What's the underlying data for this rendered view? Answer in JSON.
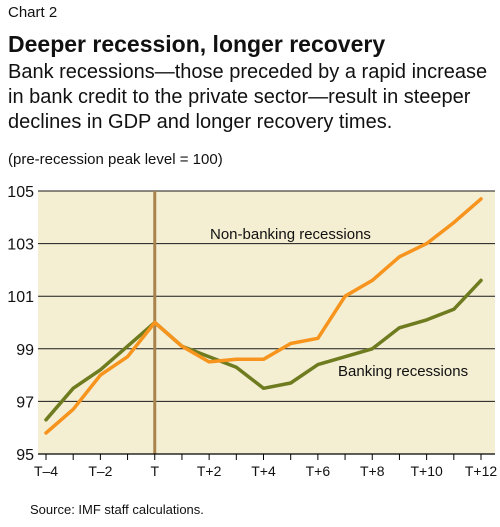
{
  "header": {
    "kicker": "Chart 2",
    "title": "Deeper recession, longer recovery",
    "subtitle": "Bank recessions—those preceded by a rapid increase in bank credit to the private sector—result in steeper declines in GDP and longer recovery times.",
    "unit_note": "(pre-recession peak level = 100)"
  },
  "footer": {
    "source": "Source: IMF staff calculations."
  },
  "chart_data": {
    "type": "line",
    "title": "Deeper recession, longer recovery",
    "x": [
      "T−4",
      "T−3",
      "T−2",
      "T−1",
      "T",
      "T+1",
      "T+2",
      "T+3",
      "T+4",
      "T+5",
      "T+6",
      "T+7",
      "T+8",
      "T+9",
      "T+10",
      "T+11",
      "T+12"
    ],
    "x_tick_labels": [
      "T–4",
      "T–2",
      "T",
      "T+2",
      "T+4",
      "T+6",
      "T+8",
      "T+10",
      "T+12"
    ],
    "ylim": [
      95,
      105
    ],
    "y_ticks": [
      "95",
      "97",
      "99",
      "101",
      "103",
      "105"
    ],
    "grid": "horizontal",
    "reference_line_at": "T",
    "series": [
      {
        "name": "Non-banking recessions",
        "color": "#f7941d",
        "values": [
          95.8,
          96.7,
          98.0,
          98.7,
          100.0,
          99.1,
          98.5,
          98.6,
          98.6,
          99.2,
          99.4,
          101.0,
          101.6,
          102.5,
          103.0,
          103.8,
          104.7
        ]
      },
      {
        "name": "Banking recessions",
        "color": "#6e7b1f",
        "values": [
          96.3,
          97.5,
          98.2,
          99.1,
          100.0,
          99.1,
          98.7,
          98.3,
          97.5,
          97.7,
          98.4,
          98.7,
          99.0,
          99.8,
          100.1,
          100.5,
          101.6
        ]
      }
    ]
  }
}
